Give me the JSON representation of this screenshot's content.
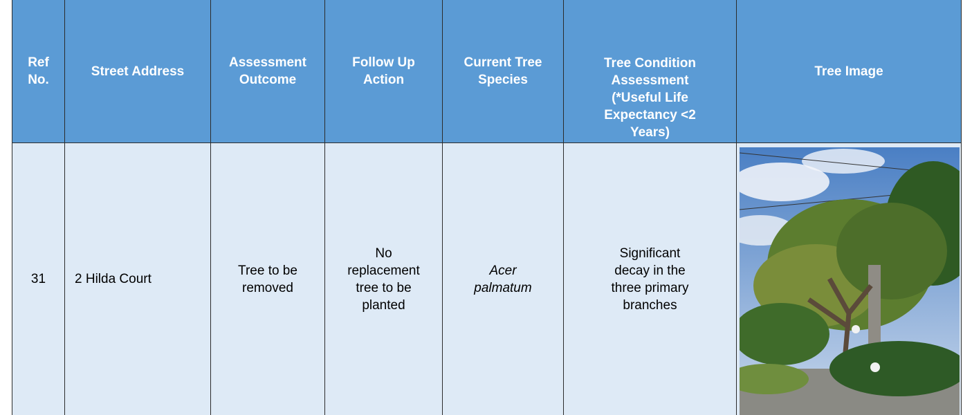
{
  "table": {
    "header": [
      "Ref No.",
      "Street Address",
      "Assessment Outcome",
      "Follow Up Action",
      "Current Tree Species",
      "Tree Condition Assessment (*Useful Life Expectancy <2 Years)",
      "Tree Image"
    ],
    "rows": [
      [
        "31",
        "2 Hilda Court",
        "Tree to be removed",
        "No replacement tree to be planted",
        "Acer palmatum",
        "Significant decay in the three primary branches"
      ]
    ]
  }
}
